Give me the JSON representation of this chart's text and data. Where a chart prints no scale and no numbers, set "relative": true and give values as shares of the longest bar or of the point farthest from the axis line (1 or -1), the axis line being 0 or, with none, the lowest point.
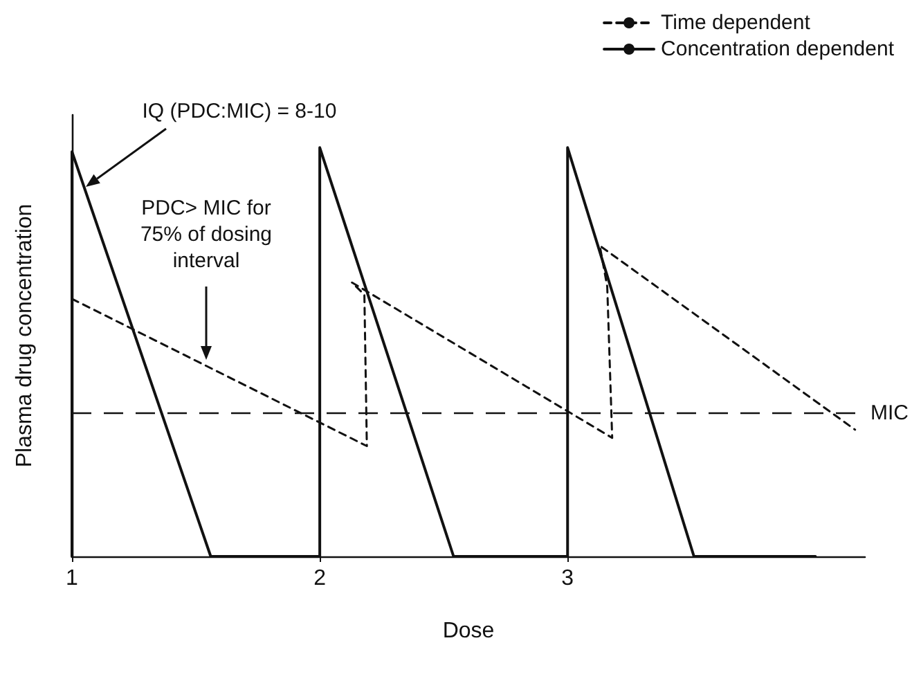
{
  "chart_data": {
    "type": "line",
    "relative": true,
    "xlabel": "Dose",
    "ylabel": "Plasma drug concentration",
    "xlim": [
      1,
      4.2
    ],
    "xticks": [
      1,
      2,
      3
    ],
    "tick_labels": "x",
    "grid": false,
    "legend": "top right",
    "marker": "none",
    "series": [
      {
        "name": "Time dependent",
        "color": "#111111",
        "line_style": "dashed",
        "x": [
          1,
          2.19,
          2.18,
          2.13,
          3.18,
          3.16,
          3.13,
          4.16
        ],
        "values": [
          0.63,
          0.27,
          0.64,
          0.67,
          0.29,
          0.66,
          0.76,
          0.31
        ]
      },
      {
        "name": "Concentration dependent",
        "color": "#111111",
        "line_style": "solid",
        "x": [
          1,
          1,
          1.56,
          2,
          2,
          2.54,
          3,
          3,
          3.51,
          4.0
        ],
        "values": [
          0,
          0.99,
          0,
          0,
          1.0,
          0,
          0,
          1.0,
          0,
          0
        ]
      }
    ],
    "ref_lines": [
      {
        "axis": "y",
        "value": 0.35,
        "label": "MIC",
        "color": "#111111",
        "line_style": "dashed"
      }
    ],
    "annotations": [
      "IQ (PDC:MIC) = 8-10",
      "PDC> MIC for 75% of dosing interval"
    ]
  }
}
